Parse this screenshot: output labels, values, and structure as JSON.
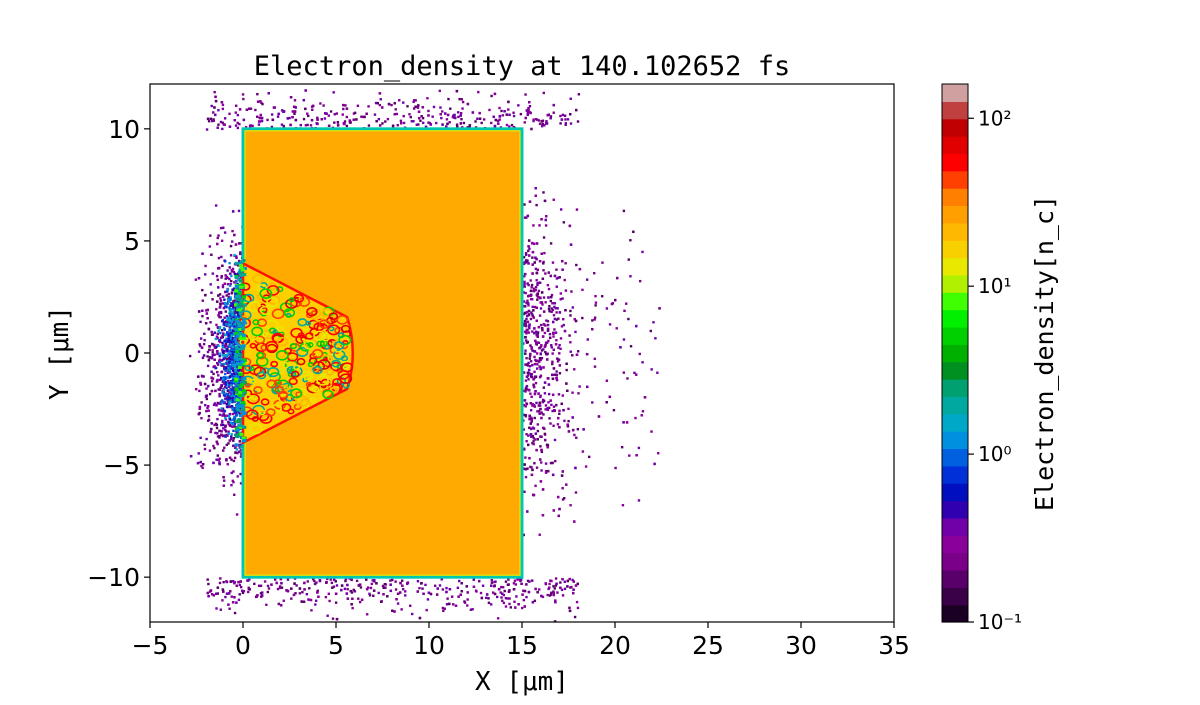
{
  "chart_data": {
    "type": "heatmap",
    "title": "Electron_density at 140.102652 fs",
    "xlabel": "X [μm]",
    "ylabel": "Y [μm]",
    "xlim": [
      -5,
      35
    ],
    "ylim": [
      -12,
      12
    ],
    "x_ticks": [
      -5,
      0,
      5,
      10,
      15,
      20,
      25,
      30,
      35
    ],
    "y_ticks": [
      -10,
      -5,
      0,
      5,
      10
    ],
    "x_tick_labels": [
      "−5",
      "0",
      "5",
      "10",
      "15",
      "20",
      "25",
      "30",
      "35"
    ],
    "y_tick_labels": [
      "−10",
      "−5",
      "0",
      "5",
      "10"
    ],
    "grid": false,
    "colorbar": {
      "label": "Electron_density[n_c]",
      "scale": "log",
      "range": [
        0.1,
        160
      ],
      "ticks": [
        0.1,
        1,
        10,
        100
      ],
      "tick_labels": [
        "10⁻¹",
        "10⁰",
        "10¹",
        "10²"
      ],
      "colormap_colors": [
        "#1a0022",
        "#3a0048",
        "#5a006a",
        "#7a008a",
        "#8a009a",
        "#7000a8",
        "#3000b0",
        "#0010c0",
        "#0030d8",
        "#0060e0",
        "#0090e0",
        "#00a8c8",
        "#00a8a0",
        "#00a070",
        "#009020",
        "#00b000",
        "#00d000",
        "#00f000",
        "#40ff00",
        "#b0f000",
        "#e8e800",
        "#f8d000",
        "#ffb800",
        "#ffa000",
        "#ff8000",
        "#ff4000",
        "#ff0000",
        "#e00000",
        "#c00000",
        "#c04040",
        "#d0a0a0"
      ]
    },
    "target": {
      "x_range": [
        0,
        15
      ],
      "y_range": [
        -10,
        10
      ],
      "density_nc": 30,
      "fill_color": "#ffaa00",
      "edge_color": "#00c8b0"
    },
    "laser_channel": {
      "front_x": 0,
      "tip_x": 5.6,
      "half_width_at_front": 4,
      "half_width_at_tip": 1.6
    },
    "blowoff_electrons": {
      "x_range": [
        -5,
        24
      ],
      "y_range": [
        -12,
        12
      ],
      "density_range_nc": [
        0.1,
        1
      ]
    }
  }
}
